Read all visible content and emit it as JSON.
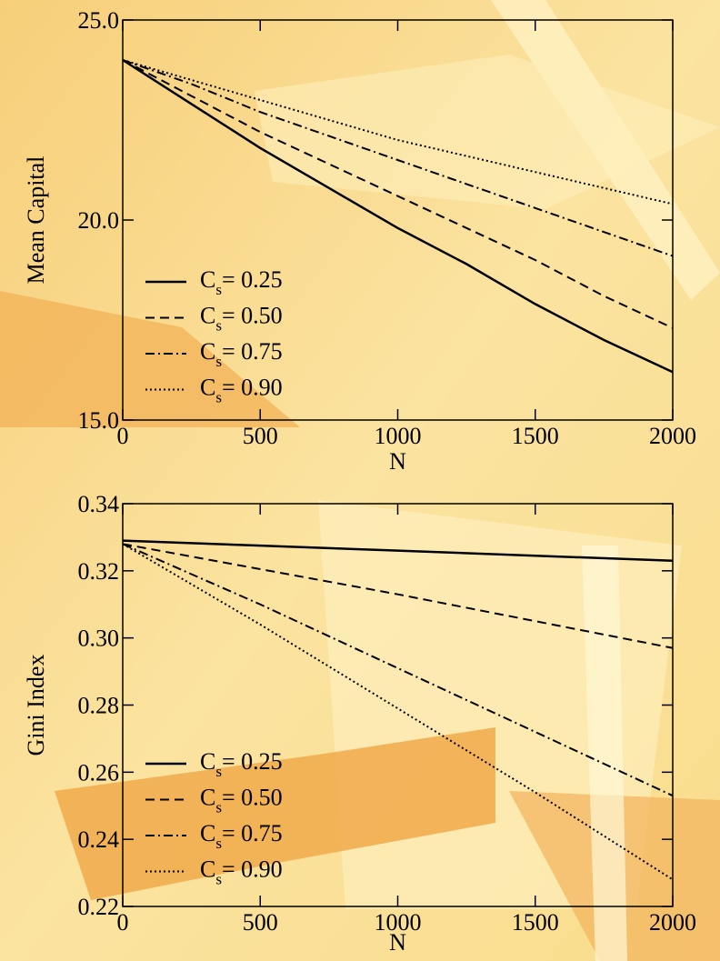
{
  "chart_data": [
    {
      "type": "line",
      "x_label": "N",
      "y_label": "Mean Capital",
      "x": [
        0,
        250,
        500,
        750,
        1000,
        1250,
        1500,
        1750,
        2000
      ],
      "series": [
        {
          "name": "Cs= 0.25",
          "color": "#000000",
          "linestyle": "solid",
          "values": [
            24.0,
            22.9,
            21.8,
            20.8,
            19.8,
            18.9,
            17.9,
            17.0,
            16.2
          ]
        },
        {
          "name": "Cs= 0.50",
          "color": "#000000",
          "linestyle": "dashed",
          "values": [
            24.0,
            23.1,
            22.2,
            21.4,
            20.6,
            19.8,
            19.0,
            18.1,
            17.3
          ]
        },
        {
          "name": "Cs= 0.75",
          "color": "#000000",
          "linestyle": "dashdot",
          "values": [
            24.0,
            23.4,
            22.7,
            22.1,
            21.5,
            20.9,
            20.3,
            19.7,
            19.1
          ]
        },
        {
          "name": "Cs= 0.90",
          "color": "#000000",
          "linestyle": "dotted",
          "values": [
            24.0,
            23.5,
            23.0,
            22.5,
            22.0,
            21.6,
            21.2,
            20.8,
            20.4
          ]
        }
      ],
      "xlim": [
        0,
        2000
      ],
      "xticks": [
        0,
        500,
        1000,
        1500,
        2000
      ],
      "ylim": [
        15,
        25
      ],
      "yticks": [
        {
          "value": 15,
          "label": "15.0"
        },
        {
          "value": 20,
          "label": "20.0"
        },
        {
          "value": 25,
          "label": "25.0"
        }
      ],
      "legend": "lower left",
      "grid": false
    },
    {
      "type": "line",
      "x_label": "N",
      "y_label": "Gini Index",
      "x": [
        0,
        500,
        1000,
        1500,
        2000
      ],
      "series": [
        {
          "name": "Cs= 0.25",
          "color": "#000000",
          "linestyle": "solid",
          "values": [
            0.329,
            0.3275,
            0.326,
            0.3245,
            0.323
          ]
        },
        {
          "name": "Cs= 0.50",
          "color": "#000000",
          "linestyle": "dashed",
          "values": [
            0.328,
            0.3205,
            0.313,
            0.305,
            0.297
          ]
        },
        {
          "name": "Cs= 0.75",
          "color": "#000000",
          "linestyle": "dashdot",
          "values": [
            0.328,
            0.31,
            0.291,
            0.272,
            0.253
          ]
        },
        {
          "name": "Cs= 0.90",
          "color": "#000000",
          "linestyle": "dotted",
          "values": [
            0.328,
            0.304,
            0.279,
            0.254,
            0.228
          ]
        }
      ],
      "xlim": [
        0,
        2000
      ],
      "xticks": [
        0,
        500,
        1000,
        1500,
        2000
      ],
      "ylim": [
        0.22,
        0.34
      ],
      "yticks": [
        0.22,
        0.24,
        0.26,
        0.28,
        {
          "value": 0.3,
          "label": "0.30"
        },
        0.32,
        0.34
      ],
      "legend": "lower left",
      "grid": false
    }
  ]
}
